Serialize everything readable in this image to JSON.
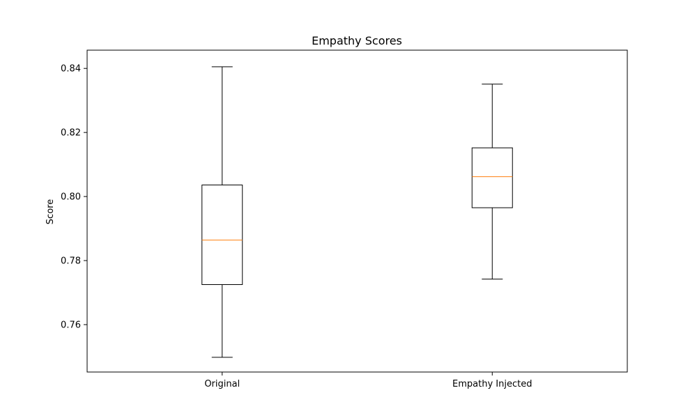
{
  "chart_data": {
    "type": "box",
    "title": "Empathy Scores",
    "xlabel": "",
    "ylabel": "Score",
    "categories": [
      "Original",
      "Empathy Injected"
    ],
    "boxes": [
      {
        "category": "Original",
        "whisker_low": 0.7498,
        "q1": 0.7725,
        "median": 0.7864,
        "q3": 0.8036,
        "whisker_high": 0.8405
      },
      {
        "category": "Empathy Injected",
        "whisker_low": 0.7742,
        "q1": 0.7965,
        "median": 0.8062,
        "q3": 0.8152,
        "whisker_high": 0.8351
      }
    ],
    "ylim": [
      0.7452,
      0.8457
    ],
    "yticks": [
      0.76,
      0.78,
      0.8,
      0.82,
      0.84
    ],
    "ytick_labels": [
      "0.76",
      "0.78",
      "0.80",
      "0.82",
      "0.84"
    ],
    "grid": false,
    "colors": {
      "box": "#000000",
      "median": "#ff7f0e",
      "axes": "#000000"
    }
  }
}
